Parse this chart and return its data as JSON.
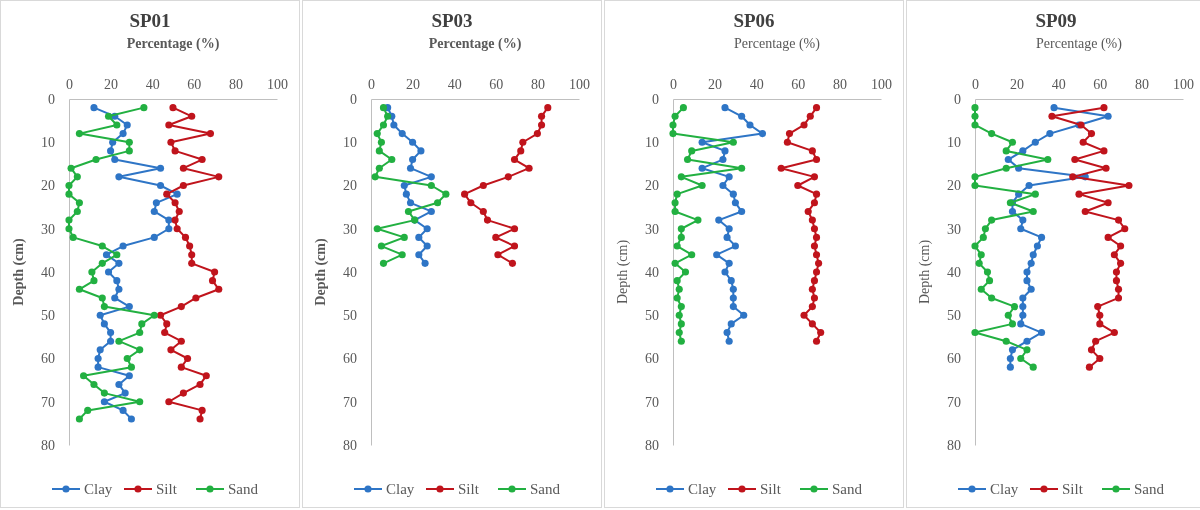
{
  "chart_data": [
    {
      "type": "line",
      "title": "SP01",
      "xlabel": "Percentage (%)",
      "ylabel": "Depth (cm)",
      "xlim": [
        0,
        100
      ],
      "xticks": [
        0,
        20,
        40,
        60,
        80,
        100
      ],
      "ylim": [
        80,
        0
      ],
      "yticks": [
        0,
        10,
        20,
        30,
        40,
        50,
        60,
        70,
        80
      ],
      "marker": "circle",
      "legend": "bottom",
      "series": [
        {
          "name": "Clay",
          "color": "#2e75c6",
          "x": [
            12,
            22,
            28,
            26,
            21,
            20,
            22,
            44,
            24,
            44,
            52,
            42,
            41,
            48,
            48,
            41,
            26,
            18,
            24,
            19,
            23,
            24,
            22,
            29,
            15,
            17,
            20,
            20,
            15,
            14,
            14,
            29,
            24,
            27,
            17,
            26,
            30
          ],
          "values": [
            2,
            4,
            6,
            8,
            10,
            12,
            14,
            16,
            18,
            20,
            22,
            24,
            26,
            28,
            30,
            32,
            34,
            36,
            38,
            40,
            42,
            44,
            46,
            48,
            50,
            52,
            54,
            56,
            58,
            60,
            62,
            64,
            66,
            68,
            70,
            72,
            74
          ]
        },
        {
          "name": "Silt",
          "color": "#c0141c",
          "x": [
            50,
            59,
            48,
            68,
            49,
            51,
            64,
            55,
            72,
            55,
            47,
            51,
            53,
            51,
            52,
            56,
            58,
            59,
            59,
            70,
            69,
            72,
            61,
            54,
            44,
            47,
            46,
            54,
            49,
            57,
            54,
            66,
            63,
            55,
            48,
            64,
            63
          ],
          "values": [
            2,
            4,
            6,
            8,
            10,
            12,
            14,
            16,
            18,
            20,
            22,
            24,
            26,
            28,
            30,
            32,
            34,
            36,
            38,
            40,
            42,
            44,
            46,
            48,
            50,
            52,
            54,
            56,
            58,
            60,
            62,
            64,
            66,
            68,
            70,
            72,
            74
          ]
        },
        {
          "name": "Sand",
          "color": "#22b041",
          "x": [
            36,
            19,
            23,
            5,
            29,
            29,
            13,
            1,
            4,
            0,
            0,
            5,
            4,
            0,
            0,
            2,
            16,
            23,
            16,
            11,
            12,
            5,
            16,
            17,
            41,
            35,
            34,
            24,
            34,
            28,
            30,
            7,
            12,
            17,
            34,
            9,
            5
          ],
          "values": [
            2,
            4,
            6,
            8,
            10,
            12,
            14,
            16,
            18,
            20,
            22,
            24,
            26,
            28,
            30,
            32,
            34,
            36,
            38,
            40,
            42,
            44,
            46,
            48,
            50,
            52,
            54,
            56,
            58,
            60,
            62,
            64,
            66,
            68,
            70,
            72,
            74
          ]
        }
      ]
    },
    {
      "type": "line",
      "title": "SP03",
      "xlabel": "Percentage (%)",
      "ylabel": "Depth (cm)",
      "xlim": [
        0,
        100
      ],
      "xticks": [
        0,
        20,
        40,
        60,
        80,
        100
      ],
      "ylim": [
        80,
        0
      ],
      "yticks": [
        0,
        10,
        20,
        30,
        40,
        50,
        60,
        70,
        80
      ],
      "marker": "circle",
      "legend": "bottom",
      "series": [
        {
          "name": "Clay",
          "color": "#2e75c6",
          "x": [
            8,
            10,
            11,
            15,
            20,
            24,
            20,
            19,
            29,
            16,
            17,
            19,
            29,
            21,
            27,
            23,
            27,
            23,
            26
          ],
          "values": [
            2,
            4,
            6,
            8,
            10,
            12,
            14,
            16,
            18,
            20,
            22,
            24,
            26,
            28,
            30,
            32,
            34,
            36,
            38
          ]
        },
        {
          "name": "Silt",
          "color": "#c0141c",
          "x": [
            85,
            82,
            82,
            80,
            73,
            72,
            69,
            76,
            66,
            54,
            45,
            48,
            54,
            56,
            69,
            60,
            69,
            61,
            68
          ],
          "values": [
            2,
            4,
            6,
            8,
            10,
            12,
            14,
            16,
            18,
            20,
            22,
            24,
            26,
            28,
            30,
            32,
            34,
            36,
            38
          ]
        },
        {
          "name": "Sand",
          "color": "#22b041",
          "x": [
            6,
            8,
            6,
            3,
            5,
            4,
            10,
            4,
            2,
            29,
            36,
            32,
            18,
            21,
            3,
            16,
            5,
            15,
            6
          ],
          "values": [
            2,
            4,
            6,
            8,
            10,
            12,
            14,
            16,
            18,
            20,
            22,
            24,
            26,
            28,
            30,
            32,
            34,
            36,
            38
          ]
        }
      ]
    },
    {
      "type": "line",
      "title": "SP06",
      "xlabel": "Percentage (%)",
      "ylabel": "Depth (cm)",
      "xlim": [
        0,
        100
      ],
      "xticks": [
        0,
        20,
        40,
        60,
        80,
        100
      ],
      "ylim": [
        80,
        0
      ],
      "yticks": [
        0,
        10,
        20,
        30,
        40,
        50,
        60,
        70,
        80
      ],
      "marker": "circle",
      "legend": "bottom",
      "series": [
        {
          "name": "Clay",
          "color": "#2e75c6",
          "x": [
            25,
            33,
            37,
            43,
            14,
            25,
            24,
            14,
            27,
            24,
            29,
            30,
            33,
            22,
            27,
            26,
            30,
            21,
            27,
            25,
            28,
            29,
            29,
            29,
            34,
            28,
            26,
            27
          ],
          "values": [
            2,
            4,
            6,
            8,
            10,
            12,
            14,
            16,
            18,
            20,
            22,
            24,
            26,
            28,
            30,
            32,
            34,
            36,
            38,
            40,
            42,
            44,
            46,
            48,
            50,
            52,
            54,
            56
          ]
        },
        {
          "name": "Silt",
          "color": "#c0141c",
          "x": [
            69,
            66,
            63,
            56,
            55,
            67,
            69,
            52,
            68,
            60,
            69,
            68,
            65,
            67,
            68,
            69,
            68,
            69,
            70,
            69,
            68,
            67,
            68,
            67,
            63,
            67,
            71,
            69
          ],
          "values": [
            2,
            4,
            6,
            8,
            10,
            12,
            14,
            16,
            18,
            20,
            22,
            24,
            26,
            28,
            30,
            32,
            34,
            36,
            38,
            40,
            42,
            44,
            46,
            48,
            50,
            52,
            54,
            56
          ]
        },
        {
          "name": "Sand",
          "color": "#22b041",
          "x": [
            5,
            1,
            0,
            0,
            29,
            9,
            7,
            33,
            4,
            14,
            2,
            1,
            1,
            12,
            4,
            4,
            2,
            9,
            1,
            6,
            2,
            3,
            2,
            4,
            3,
            4,
            3,
            4
          ],
          "values": [
            2,
            4,
            6,
            8,
            10,
            12,
            14,
            16,
            18,
            20,
            22,
            24,
            26,
            28,
            30,
            32,
            34,
            36,
            38,
            40,
            42,
            44,
            46,
            48,
            50,
            52,
            54,
            56
          ]
        }
      ]
    },
    {
      "type": "line",
      "title": "SP09",
      "xlabel": "Percentage (%)",
      "ylabel": "Depth (cm)",
      "xlim": [
        0,
        100
      ],
      "xticks": [
        0,
        20,
        40,
        60,
        80,
        100
      ],
      "ylim": [
        80,
        0
      ],
      "yticks": [
        0,
        10,
        20,
        30,
        40,
        50,
        60,
        70,
        80
      ],
      "marker": "circle",
      "legend": "bottom",
      "series": [
        {
          "name": "Clay",
          "color": "#2e75c6",
          "x": [
            38,
            64,
            50,
            36,
            29,
            23,
            16,
            21,
            53,
            26,
            21,
            18,
            18,
            23,
            22,
            32,
            30,
            28,
            27,
            25,
            25,
            27,
            23,
            23,
            23,
            22,
            32,
            25,
            18,
            17,
            17
          ],
          "values": [
            2,
            4,
            6,
            8,
            10,
            12,
            14,
            16,
            18,
            20,
            22,
            24,
            26,
            28,
            30,
            32,
            34,
            36,
            38,
            40,
            42,
            44,
            46,
            48,
            50,
            52,
            54,
            56,
            58,
            60,
            62
          ]
        },
        {
          "name": "Silt",
          "color": "#c0141c",
          "x": [
            62,
            37,
            51,
            56,
            52,
            62,
            48,
            63,
            47,
            74,
            50,
            64,
            53,
            69,
            72,
            64,
            70,
            67,
            70,
            68,
            68,
            69,
            69,
            59,
            60,
            60,
            67,
            58,
            56,
            60,
            55
          ],
          "values": [
            2,
            4,
            6,
            8,
            10,
            12,
            14,
            16,
            18,
            20,
            22,
            24,
            26,
            28,
            30,
            32,
            34,
            36,
            38,
            40,
            42,
            44,
            46,
            48,
            50,
            52,
            54,
            56,
            58,
            60,
            62
          ]
        },
        {
          "name": "Sand",
          "color": "#22b041",
          "x": [
            0,
            0,
            0,
            8,
            18,
            15,
            35,
            15,
            0,
            0,
            29,
            17,
            28,
            8,
            5,
            4,
            0,
            3,
            2,
            6,
            7,
            3,
            8,
            19,
            16,
            18,
            0,
            15,
            25,
            22,
            28
          ],
          "values": [
            2,
            4,
            6,
            8,
            10,
            12,
            14,
            16,
            18,
            20,
            22,
            24,
            26,
            28,
            30,
            32,
            34,
            36,
            38,
            40,
            42,
            44,
            46,
            48,
            50,
            52,
            54,
            56,
            58,
            60,
            62
          ]
        }
      ]
    }
  ]
}
